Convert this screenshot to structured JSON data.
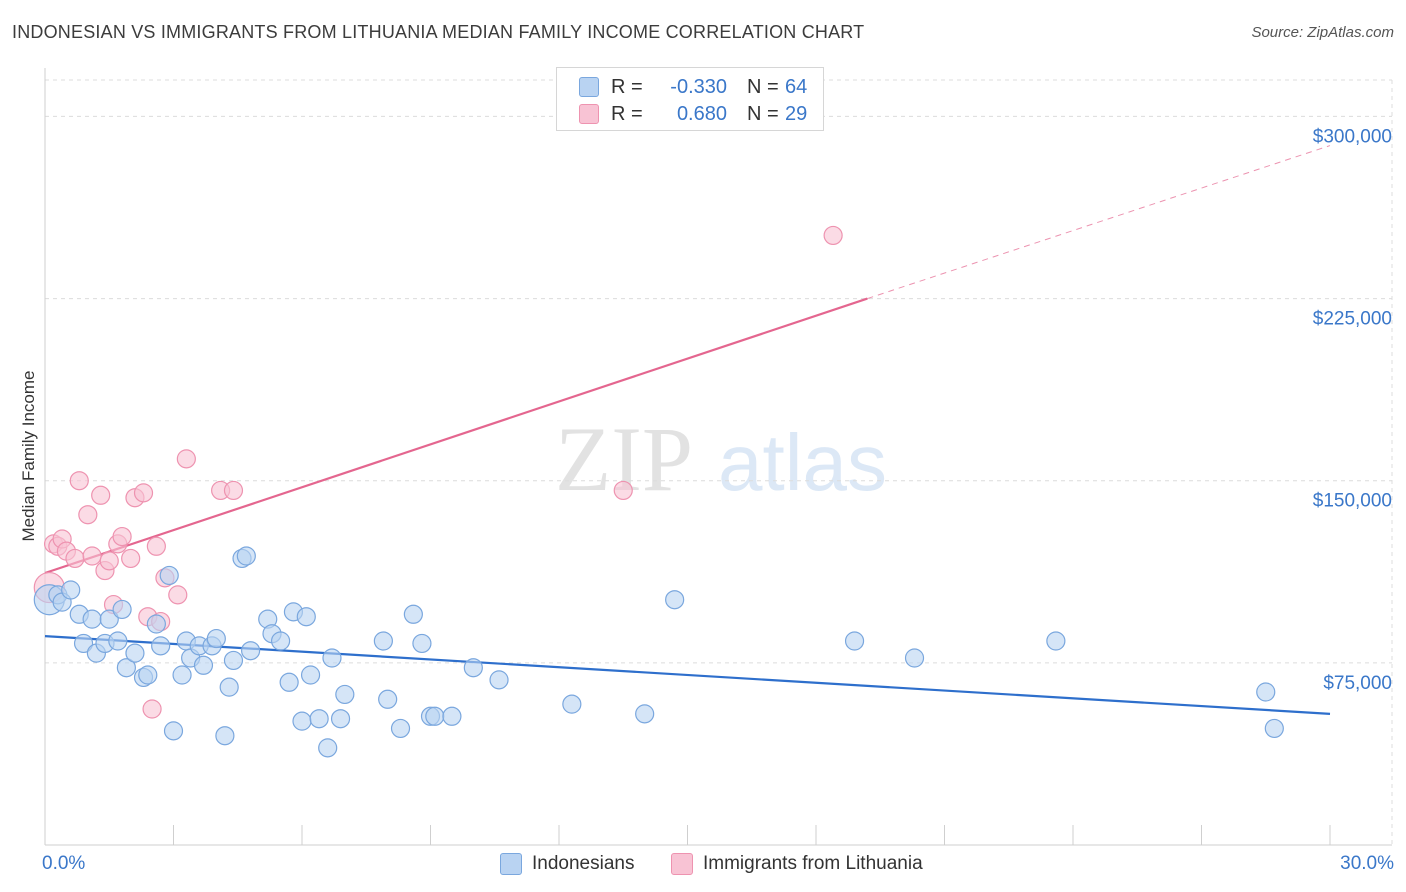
{
  "header": {
    "title": "INDONESIAN VS IMMIGRANTS FROM LITHUANIA MEDIAN FAMILY INCOME CORRELATION CHART",
    "source": "Source: ZipAtlas.com"
  },
  "watermark": {
    "part1": "ZIP",
    "part2": "atlas"
  },
  "legend_top": [
    {
      "r_label": "R =",
      "r_value": "-0.330",
      "n_label": "N =",
      "n_value": "64"
    },
    {
      "r_label": "R =",
      "r_value": "0.680",
      "n_label": "N =",
      "n_value": "29"
    }
  ],
  "legend_bottom": [
    {
      "label": "Indonesians"
    },
    {
      "label": "Immigrants from Lithuania"
    }
  ],
  "colors": {
    "blue_fill": "#b9d3f2",
    "blue_stroke": "#7aa7de",
    "blue_line": "#2e6fcc",
    "pink_fill": "#f8c3d4",
    "pink_stroke": "#ee93b0",
    "pink_line": "#e4668f",
    "grid": "#dcdcdc",
    "tick_text": "#3a77c9"
  },
  "chart_data": {
    "type": "scatter",
    "title": "INDONESIAN VS IMMIGRANTS FROM LITHUANIA MEDIAN FAMILY INCOME CORRELATION CHART",
    "xlabel": "",
    "ylabel": "Median Family Income",
    "xlim": [
      0,
      30
    ],
    "ylim": [
      0,
      315000
    ],
    "y_ticks": [
      75000,
      150000,
      225000,
      300000
    ],
    "y_tick_labels": [
      "$75,000",
      "$150,000",
      "$225,000",
      "$300,000"
    ],
    "x_tick_labels": [
      "0.0%",
      "30.0%"
    ],
    "grid": true,
    "legend_position": "top-center",
    "series": [
      {
        "name": "Indonesians",
        "color": "#b9d3f2",
        "r": -0.33,
        "n": 64,
        "trend": {
          "x": [
            0,
            30
          ],
          "y": [
            86000,
            54000
          ]
        },
        "points": [
          [
            0.1,
            101000
          ],
          [
            0.3,
            103000
          ],
          [
            0.4,
            100000
          ],
          [
            0.6,
            105000
          ],
          [
            0.8,
            95000
          ],
          [
            0.9,
            83000
          ],
          [
            1.1,
            93000
          ],
          [
            1.2,
            79000
          ],
          [
            1.4,
            83000
          ],
          [
            1.5,
            93000
          ],
          [
            1.7,
            84000
          ],
          [
            1.8,
            97000
          ],
          [
            1.9,
            73000
          ],
          [
            2.1,
            79000
          ],
          [
            2.3,
            69000
          ],
          [
            2.4,
            70000
          ],
          [
            2.6,
            91000
          ],
          [
            2.7,
            82000
          ],
          [
            2.9,
            111000
          ],
          [
            3.0,
            47000
          ],
          [
            3.2,
            70000
          ],
          [
            3.3,
            84000
          ],
          [
            3.4,
            77000
          ],
          [
            3.6,
            82000
          ],
          [
            3.7,
            74000
          ],
          [
            3.9,
            82000
          ],
          [
            4.0,
            85000
          ],
          [
            4.2,
            45000
          ],
          [
            4.3,
            65000
          ],
          [
            4.4,
            76000
          ],
          [
            4.6,
            118000
          ],
          [
            4.7,
            119000
          ],
          [
            4.8,
            80000
          ],
          [
            5.2,
            93000
          ],
          [
            5.3,
            87000
          ],
          [
            5.5,
            84000
          ],
          [
            5.7,
            67000
          ],
          [
            5.8,
            96000
          ],
          [
            6.0,
            51000
          ],
          [
            6.1,
            94000
          ],
          [
            6.2,
            70000
          ],
          [
            6.4,
            52000
          ],
          [
            6.6,
            40000
          ],
          [
            6.7,
            77000
          ],
          [
            6.9,
            52000
          ],
          [
            7.0,
            62000
          ],
          [
            7.9,
            84000
          ],
          [
            8.0,
            60000
          ],
          [
            8.3,
            48000
          ],
          [
            8.6,
            95000
          ],
          [
            8.8,
            83000
          ],
          [
            9.0,
            53000
          ],
          [
            9.1,
            53000
          ],
          [
            9.5,
            53000
          ],
          [
            10.0,
            73000
          ],
          [
            10.6,
            68000
          ],
          [
            12.3,
            58000
          ],
          [
            14.0,
            54000
          ],
          [
            14.7,
            101000
          ],
          [
            18.9,
            84000
          ],
          [
            20.3,
            77000
          ],
          [
            23.6,
            84000
          ],
          [
            28.5,
            63000
          ],
          [
            28.7,
            48000
          ]
        ]
      },
      {
        "name": "Immigrants from Lithuania",
        "color": "#f8c3d4",
        "r": 0.68,
        "n": 29,
        "trend": {
          "x": [
            0,
            19.2,
            30
          ],
          "y": [
            112000,
            225000,
            288000
          ]
        },
        "points": [
          [
            0.1,
            106000
          ],
          [
            0.2,
            124000
          ],
          [
            0.3,
            123000
          ],
          [
            0.4,
            126000
          ],
          [
            0.5,
            121000
          ],
          [
            0.7,
            118000
          ],
          [
            0.8,
            150000
          ],
          [
            1.0,
            136000
          ],
          [
            1.1,
            119000
          ],
          [
            1.3,
            144000
          ],
          [
            1.4,
            113000
          ],
          [
            1.5,
            117000
          ],
          [
            1.6,
            99000
          ],
          [
            1.7,
            124000
          ],
          [
            1.8,
            127000
          ],
          [
            2.0,
            118000
          ],
          [
            2.1,
            143000
          ],
          [
            2.3,
            145000
          ],
          [
            2.4,
            94000
          ],
          [
            2.5,
            56000
          ],
          [
            2.6,
            123000
          ],
          [
            2.7,
            92000
          ],
          [
            2.8,
            110000
          ],
          [
            3.1,
            103000
          ],
          [
            3.3,
            159000
          ],
          [
            4.1,
            146000
          ],
          [
            4.4,
            146000
          ],
          [
            13.5,
            146000
          ],
          [
            18.4,
            251000
          ]
        ]
      }
    ]
  }
}
